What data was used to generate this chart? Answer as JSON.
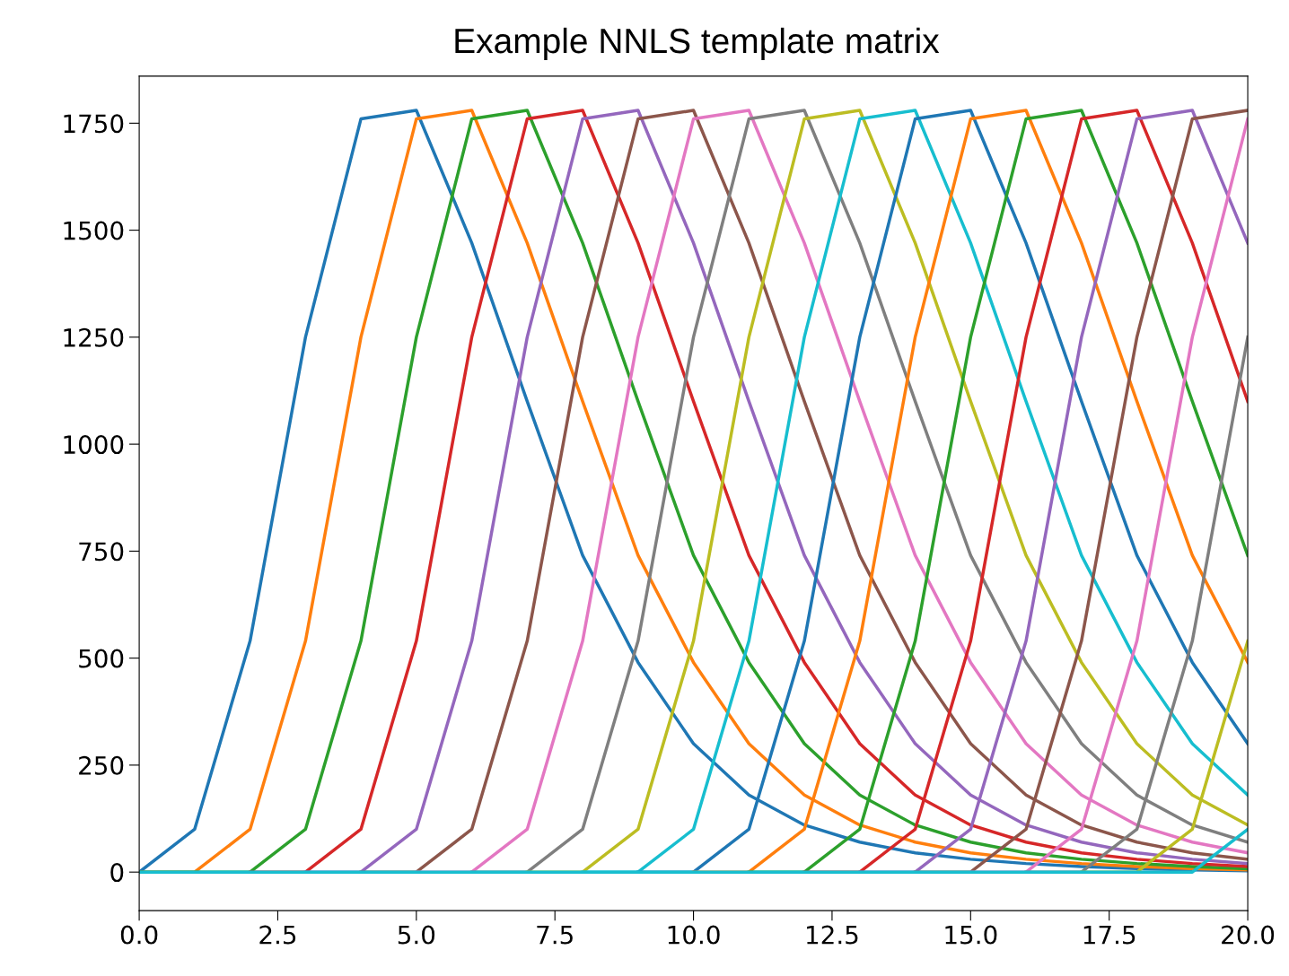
{
  "chart_data": {
    "type": "line",
    "title": "Example NNLS template matrix",
    "x": [
      0,
      1,
      2,
      3,
      4,
      5,
      6,
      7,
      8,
      9,
      10,
      11,
      12,
      13,
      14,
      15,
      16,
      17,
      18,
      19,
      20
    ],
    "xlim": [
      0,
      20
    ],
    "ylim": [
      -90,
      1860
    ],
    "xticks": [
      {
        "value": 0,
        "label": "0.0"
      },
      {
        "value": 2.5,
        "label": "2.5"
      },
      {
        "value": 5,
        "label": "5.0"
      },
      {
        "value": 7.5,
        "label": "7.5"
      },
      {
        "value": 10,
        "label": "10.0"
      },
      {
        "value": 12.5,
        "label": "12.5"
      },
      {
        "value": 15,
        "label": "15.0"
      },
      {
        "value": 17.5,
        "label": "17.5"
      },
      {
        "value": 20,
        "label": "20.0"
      }
    ],
    "yticks": [
      0,
      250,
      500,
      750,
      1000,
      1250,
      1500,
      1750
    ],
    "grid": false,
    "legend": false,
    "marker": "none",
    "line_style": "solid",
    "series": [
      {
        "color": "#1f77b4",
        "values": [
          0,
          100,
          540,
          1250,
          1760,
          1780,
          1470,
          1100,
          740,
          490,
          300,
          180,
          110,
          70,
          45,
          30,
          20,
          13,
          8,
          5,
          3
        ]
      },
      {
        "color": "#ff7f0e",
        "values": [
          0,
          0,
          100,
          540,
          1250,
          1760,
          1780,
          1470,
          1100,
          740,
          490,
          300,
          180,
          110,
          70,
          45,
          30,
          20,
          13,
          8,
          5
        ]
      },
      {
        "color": "#2ca02c",
        "values": [
          0,
          0,
          0,
          100,
          540,
          1250,
          1760,
          1780,
          1470,
          1100,
          740,
          490,
          300,
          180,
          110,
          70,
          45,
          30,
          20,
          13,
          8
        ]
      },
      {
        "color": "#d62728",
        "values": [
          null,
          null,
          0,
          0,
          100,
          540,
          1250,
          1760,
          1780,
          1470,
          1100,
          740,
          490,
          300,
          180,
          110,
          70,
          45,
          30,
          20,
          13
        ]
      },
      {
        "color": "#9467bd",
        "values": [
          null,
          null,
          null,
          0,
          0,
          100,
          540,
          1250,
          1760,
          1780,
          1470,
          1100,
          740,
          490,
          300,
          180,
          110,
          70,
          45,
          30,
          20
        ]
      },
      {
        "color": "#8c564b",
        "values": [
          null,
          null,
          null,
          null,
          0,
          0,
          100,
          540,
          1250,
          1760,
          1780,
          1470,
          1100,
          740,
          490,
          300,
          180,
          110,
          70,
          45,
          30
        ]
      },
      {
        "color": "#e377c2",
        "values": [
          null,
          null,
          null,
          null,
          null,
          0,
          0,
          100,
          540,
          1250,
          1760,
          1780,
          1470,
          1100,
          740,
          490,
          300,
          180,
          110,
          70,
          45
        ]
      },
      {
        "color": "#7f7f7f",
        "values": [
          null,
          null,
          null,
          null,
          null,
          null,
          0,
          0,
          100,
          540,
          1250,
          1760,
          1780,
          1470,
          1100,
          740,
          490,
          300,
          180,
          110,
          70
        ]
      },
      {
        "color": "#bcbd22",
        "values": [
          null,
          null,
          null,
          null,
          null,
          null,
          null,
          0,
          0,
          100,
          540,
          1250,
          1760,
          1780,
          1470,
          1100,
          740,
          490,
          300,
          180,
          110
        ]
      },
      {
        "color": "#17becf",
        "values": [
          null,
          null,
          null,
          null,
          null,
          null,
          null,
          null,
          0,
          0,
          100,
          540,
          1250,
          1760,
          1780,
          1470,
          1100,
          740,
          490,
          300,
          180
        ]
      },
      {
        "color": "#1f77b4",
        "values": [
          null,
          null,
          null,
          null,
          null,
          null,
          null,
          null,
          null,
          0,
          0,
          100,
          540,
          1250,
          1760,
          1780,
          1470,
          1100,
          740,
          490,
          300
        ]
      },
      {
        "color": "#ff7f0e",
        "values": [
          null,
          null,
          null,
          null,
          null,
          null,
          null,
          null,
          null,
          null,
          0,
          0,
          100,
          540,
          1250,
          1760,
          1780,
          1470,
          1100,
          740,
          490
        ]
      },
      {
        "color": "#2ca02c",
        "values": [
          null,
          null,
          null,
          null,
          null,
          null,
          null,
          null,
          null,
          null,
          null,
          0,
          0,
          100,
          540,
          1250,
          1760,
          1780,
          1470,
          1100,
          740
        ]
      },
      {
        "color": "#d62728",
        "values": [
          null,
          null,
          null,
          null,
          null,
          null,
          null,
          null,
          null,
          null,
          null,
          null,
          0,
          0,
          100,
          540,
          1250,
          1760,
          1780,
          1470,
          1100
        ]
      },
      {
        "color": "#9467bd",
        "values": [
          null,
          null,
          null,
          null,
          null,
          null,
          null,
          null,
          null,
          null,
          null,
          null,
          null,
          0,
          0,
          100,
          540,
          1250,
          1760,
          1780,
          1470
        ]
      },
      {
        "color": "#8c564b",
        "values": [
          null,
          null,
          null,
          null,
          null,
          null,
          null,
          null,
          null,
          null,
          null,
          null,
          null,
          null,
          0,
          0,
          100,
          540,
          1250,
          1760,
          1780
        ]
      },
      {
        "color": "#e377c2",
        "values": [
          null,
          null,
          null,
          null,
          null,
          null,
          null,
          null,
          null,
          null,
          null,
          null,
          null,
          null,
          null,
          0,
          0,
          100,
          540,
          1250,
          1760
        ]
      },
      {
        "color": "#7f7f7f",
        "values": [
          null,
          null,
          null,
          null,
          null,
          null,
          null,
          null,
          null,
          null,
          null,
          null,
          null,
          null,
          null,
          null,
          0,
          0,
          100,
          540,
          1250
        ]
      },
      {
        "color": "#bcbd22",
        "values": [
          null,
          null,
          null,
          null,
          null,
          null,
          null,
          null,
          null,
          null,
          null,
          null,
          null,
          null,
          null,
          null,
          null,
          0,
          0,
          100,
          540
        ]
      },
      {
        "color": "#17becf",
        "values": [
          0,
          0,
          0,
          0,
          0,
          0,
          0,
          0,
          0,
          0,
          0,
          0,
          0,
          0,
          0,
          0,
          0,
          0,
          0,
          0,
          100
        ]
      }
    ]
  }
}
